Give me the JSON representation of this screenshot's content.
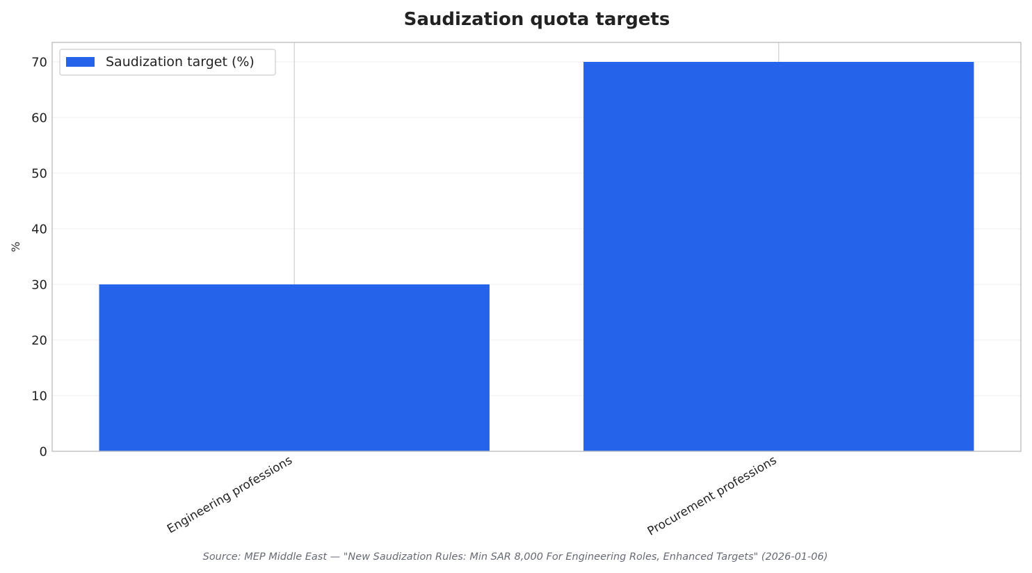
{
  "chart_data": {
    "type": "bar",
    "title": "Saudization quota targets",
    "ylabel": "%",
    "xlabel": "",
    "categories": [
      "Engineering professions",
      "Procurement professions"
    ],
    "series": [
      {
        "name": "Saudization target (%)",
        "values": [
          30,
          70
        ],
        "color": "#2563eb"
      }
    ],
    "ylim": [
      0,
      73.5
    ],
    "yticks": [
      0,
      10,
      20,
      30,
      40,
      50,
      60,
      70
    ],
    "grid": true,
    "legend_position": "top-left",
    "source": "Source: MEP Middle East — \"New Saudization Rules: Min SAR 8,000 For Engineering Roles, Enhanced Targets\" (2026-01-06)"
  }
}
